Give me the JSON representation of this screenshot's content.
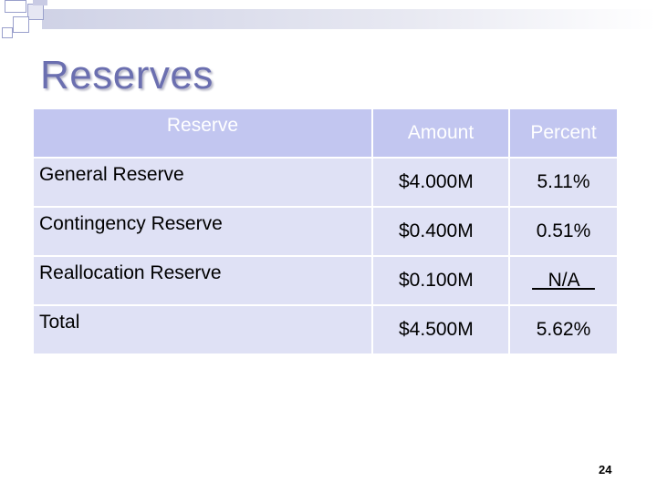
{
  "slide": {
    "title": "Reserves",
    "page_number": "24",
    "accent_color": "#6b6fb0"
  },
  "table": {
    "headers": {
      "reserve": "Reserve",
      "amount": "Amount",
      "percent": "Percent"
    },
    "rows": [
      {
        "name": "General Reserve",
        "amount": "$4.000M",
        "percent": "5.11%"
      },
      {
        "name": "Contingency Reserve",
        "amount": "$0.400M",
        "percent": "0.51%"
      },
      {
        "name": "Reallocation Reserve",
        "amount": "$0.100M",
        "percent": "   N/A   "
      },
      {
        "name": "Total",
        "amount": "$4.500M",
        "percent": "5.62%"
      }
    ],
    "header_color": "#c2c6f0",
    "cell_color": "#dfe1f5"
  }
}
